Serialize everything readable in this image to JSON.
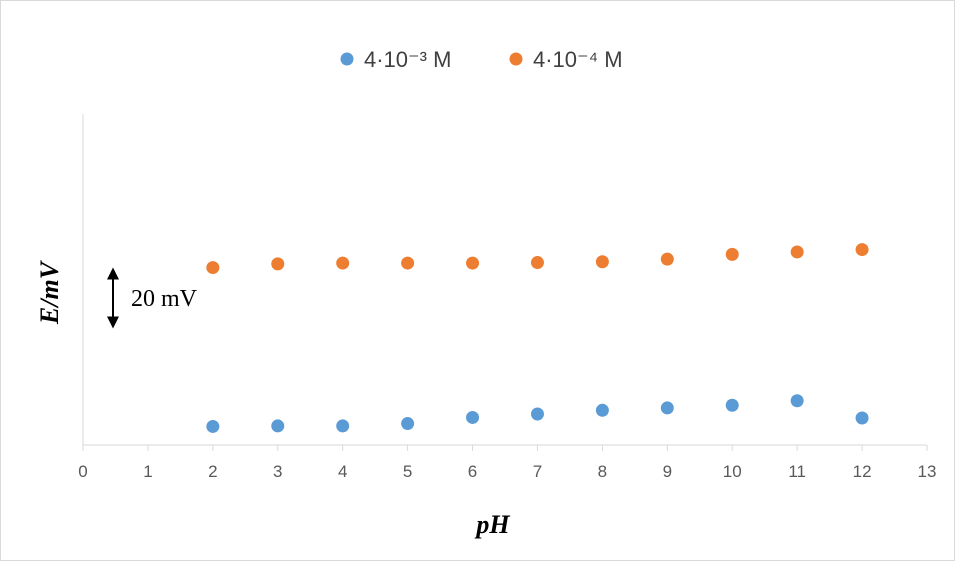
{
  "chart_data": {
    "type": "scatter",
    "xlabel": "pH",
    "ylabel": "E/mV",
    "xlim": [
      0,
      13
    ],
    "x_ticks": [
      "0",
      "1",
      "2",
      "3",
      "4",
      "5",
      "6",
      "7",
      "8",
      "9",
      "10",
      "11",
      "12",
      "13"
    ],
    "y_ticks_shown": false,
    "grid": false,
    "legend_position": "top",
    "ylim_relative_mV": [
      -67,
      58
    ],
    "scale_bar": {
      "label": "20 mV",
      "value_mV": 20
    },
    "series": [
      {
        "name": "4·10⁻³ M",
        "color": "#5b9bd5",
        "x": [
          2,
          3,
          4,
          5,
          6,
          7,
          8,
          9,
          10,
          11,
          12
        ],
        "y_relative_mV": [
          -60,
          -59.8,
          -59.8,
          -58.9,
          -56.6,
          -55.3,
          -53.9,
          -53,
          -52,
          -50.3,
          -56.8
        ]
      },
      {
        "name": "4·10⁻⁴ M",
        "color": "#ed7d31",
        "x": [
          2,
          3,
          4,
          5,
          6,
          7,
          8,
          9,
          10,
          11,
          12
        ],
        "y_relative_mV": [
          0,
          1.4,
          1.7,
          1.7,
          1.7,
          1.9,
          2.2,
          3.2,
          5,
          5.9,
          6.8
        ]
      }
    ]
  }
}
